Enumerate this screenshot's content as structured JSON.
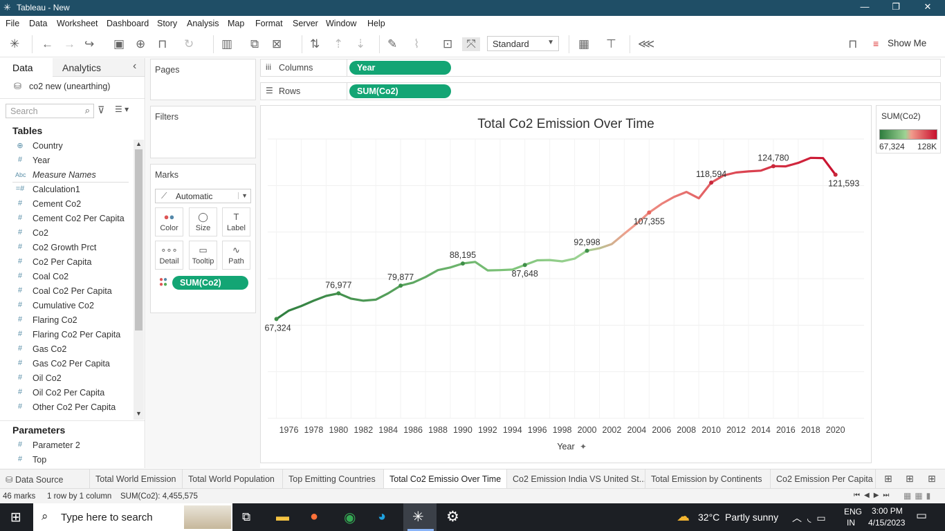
{
  "window": {
    "title": "Tableau - New",
    "min": "—",
    "max": "❐",
    "close": "✕"
  },
  "menu": [
    "File",
    "Data",
    "Worksheet",
    "Dashboard",
    "Story",
    "Analysis",
    "Map",
    "Format",
    "Server",
    "Window",
    "Help"
  ],
  "toolbar": {
    "mark_size_select": "Standard",
    "show_me": "Show Me"
  },
  "data_pane": {
    "tab_data": "Data",
    "tab_analytics": "Analytics",
    "collapse_glyph": "‹",
    "datasource": "co2 new (unearthing)",
    "search_placeholder": "Search",
    "tables_header": "Tables",
    "fields": [
      {
        "glyph": "⊕",
        "name": "Country",
        "italic": false
      },
      {
        "glyph": "#",
        "name": "Year",
        "italic": false
      },
      {
        "glyph": "Abc",
        "name": "Measure Names",
        "italic": true
      },
      {
        "glyph": "=#",
        "name": "Calculation1",
        "italic": false
      },
      {
        "glyph": "#",
        "name": "Cement Co2",
        "italic": false
      },
      {
        "glyph": "#",
        "name": "Cement Co2 Per Capita",
        "italic": false
      },
      {
        "glyph": "#",
        "name": "Co2",
        "italic": false
      },
      {
        "glyph": "#",
        "name": "Co2 Growth Prct",
        "italic": false
      },
      {
        "glyph": "#",
        "name": "Co2 Per Capita",
        "italic": false
      },
      {
        "glyph": "#",
        "name": "Coal Co2",
        "italic": false
      },
      {
        "glyph": "#",
        "name": "Coal Co2 Per Capita",
        "italic": false
      },
      {
        "glyph": "#",
        "name": "Cumulative Co2",
        "italic": false
      },
      {
        "glyph": "#",
        "name": "Flaring Co2",
        "italic": false
      },
      {
        "glyph": "#",
        "name": "Flaring Co2 Per Capita",
        "italic": false
      },
      {
        "glyph": "#",
        "name": "Gas Co2",
        "italic": false
      },
      {
        "glyph": "#",
        "name": "Gas Co2 Per Capita",
        "italic": false
      },
      {
        "glyph": "#",
        "name": "Oil Co2",
        "italic": false
      },
      {
        "glyph": "#",
        "name": "Oil Co2 Per Capita",
        "italic": false
      },
      {
        "glyph": "#",
        "name": "Other Co2 Per Capita",
        "italic": false
      }
    ],
    "parameters_header": "Parameters",
    "parameters": [
      {
        "glyph": "#",
        "name": "Parameter 2"
      },
      {
        "glyph": "#",
        "name": "Top"
      }
    ]
  },
  "cards": {
    "pages": "Pages",
    "filters": "Filters",
    "marks": "Marks",
    "mark_type": "Automatic",
    "mark_buttons": [
      {
        "label": "Color",
        "icon": "●●"
      },
      {
        "label": "Size",
        "icon": "◯"
      },
      {
        "label": "Label",
        "icon": "T"
      },
      {
        "label": "Detail",
        "icon": "∘∘∘"
      },
      {
        "label": "Tooltip",
        "icon": "▭"
      },
      {
        "label": "Path",
        "icon": "∿"
      }
    ],
    "marks_pill": "SUM(Co2)"
  },
  "shelves": {
    "columns_label": "Columns",
    "columns_pill": "Year",
    "rows_label": "Rows",
    "rows_pill": "SUM(Co2)"
  },
  "legend": {
    "title": "SUM(Co2)",
    "min_label": "67,324",
    "max_label": "128K",
    "colors": [
      "#2e7d3e",
      "#9dd394",
      "#f19c8c",
      "#c8102e"
    ]
  },
  "chart_data": {
    "type": "line",
    "title": "Total Co2 Emission Over Time",
    "xlabel": "Year",
    "ylabel": "",
    "x_ticks": [
      1976,
      1978,
      1980,
      1982,
      1984,
      1986,
      1988,
      1990,
      1992,
      1994,
      1996,
      1998,
      2000,
      2002,
      2004,
      2006,
      2008,
      2010,
      2012,
      2014,
      2016,
      2018,
      2020
    ],
    "ylim": [
      0,
      130000
    ],
    "grid": true,
    "x": [
      1975,
      1976,
      1977,
      1978,
      1979,
      1980,
      1981,
      1982,
      1983,
      1984,
      1985,
      1986,
      1987,
      1988,
      1989,
      1990,
      1991,
      1992,
      1993,
      1994,
      1995,
      1996,
      1997,
      1998,
      1999,
      2000,
      2001,
      2002,
      2003,
      2004,
      2005,
      2006,
      2007,
      2008,
      2009,
      2010,
      2011,
      2012,
      2013,
      2014,
      2015,
      2016,
      2017,
      2018,
      2019,
      2020
    ],
    "values": [
      67324,
      70500,
      72200,
      74200,
      76000,
      76977,
      75000,
      74200,
      74600,
      77000,
      79877,
      81000,
      83100,
      85700,
      86700,
      88195,
      88800,
      85600,
      85700,
      85900,
      87648,
      89400,
      89500,
      89000,
      90000,
      92998,
      93900,
      95500,
      99400,
      103200,
      107355,
      110600,
      113200,
      115100,
      112700,
      118594,
      121300,
      122400,
      122800,
      123100,
      124780,
      124700,
      126000,
      127900,
      127800,
      121593
    ],
    "data_labels": [
      {
        "x": 1975,
        "text": "67,324"
      },
      {
        "x": 1980,
        "text": "76,977"
      },
      {
        "x": 1985,
        "text": "79,877"
      },
      {
        "x": 1990,
        "text": "88,195"
      },
      {
        "x": 1995,
        "text": "87,648"
      },
      {
        "x": 2000,
        "text": "92,998"
      },
      {
        "x": 2005,
        "text": "107,355"
      },
      {
        "x": 2010,
        "text": "118,594"
      },
      {
        "x": 2015,
        "text": "124,780"
      },
      {
        "x": 2020,
        "text": "121,593"
      }
    ],
    "color_encoding": "SUM(Co2)"
  },
  "sheet_tabs": [
    {
      "label": "Data Source",
      "active": false
    },
    {
      "label": "Total World Emission",
      "active": false
    },
    {
      "label": "Total World Population",
      "active": false
    },
    {
      "label": "Top Emitting Countries",
      "active": false
    },
    {
      "label": "Total Co2 Emissio Over Time",
      "active": true
    },
    {
      "label": "Co2 Emission India VS United St...",
      "active": false
    },
    {
      "label": "Total Emission by Continents",
      "active": false
    },
    {
      "label": "Co2 Emission Per Capita",
      "active": false
    }
  ],
  "status": {
    "marks": "46 marks",
    "rows_cols": "1 row by 1 column",
    "sum": "SUM(Co2): 4,455,575"
  },
  "taskbar": {
    "search_placeholder": "Type here to search",
    "weather": "32°C  Partly sunny",
    "lang1": "ENG",
    "lang2": "IN",
    "time": "3:00 PM",
    "date": "4/15/2023"
  }
}
